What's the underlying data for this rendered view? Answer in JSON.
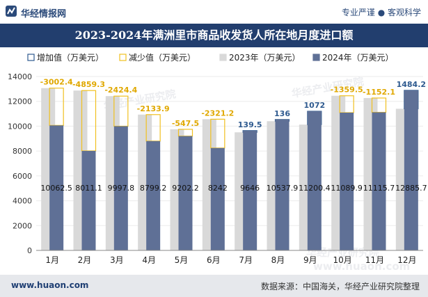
{
  "header": {
    "brand": "华经情报网",
    "tagline": "专业严谨 ● 客观科学",
    "title": "2023-2024年满洲里市商品收发货人所在地月度进口额"
  },
  "footer": {
    "website": "www.huaon.com",
    "source": "数据来源：中国海关，华经产业研究院整理"
  },
  "watermarks": [
    "华经产业研究院",
    "华经产业研究院",
    "华经产业研究院",
    "www.huaon.com"
  ],
  "colors": {
    "increase": "#2e5a8f",
    "decrease": "#f0c020",
    "y2023": "#d9d9d9",
    "y2024": "#5f7096",
    "increaseLabel": "#2e5a8f",
    "decreaseLabel": "#e0a800"
  },
  "chart_data": {
    "type": "bar",
    "categories": [
      "1月",
      "2月",
      "3月",
      "4月",
      "5月",
      "6月",
      "7月",
      "8月",
      "9月",
      "10月",
      "11月",
      "12月"
    ],
    "series": [
      {
        "name": "2023年（万美元）",
        "values": [
          13064.9,
          12870.4,
          12422.2,
          10933.1,
          9749.7,
          10563.2,
          9506.5,
          10401.9,
          10128.4,
          12449.4,
          12267.9,
          11401.5
        ]
      },
      {
        "name": "2024年（万美元）",
        "values": [
          10062.5,
          8011.1,
          9997.8,
          8799.2,
          9202.2,
          8242,
          9646,
          10537.9,
          11200.4,
          11089.9,
          11115.7,
          12885.7
        ]
      }
    ],
    "change_labels": [
      "-3002.4",
      "-4859.3",
      "-2424.4",
      "-2133.9",
      "-547.5",
      "-2321.2",
      "139.5",
      "136",
      "1072",
      "-1359.5",
      "-1152.1",
      "1484.2"
    ],
    "legend": [
      "增加值（万美元）",
      "减少值（万美元）",
      "2023年（万美元）",
      "2024年（万美元）"
    ],
    "y_ticks": [
      "0",
      "2000",
      "4000",
      "6000",
      "8000",
      "10000",
      "12000",
      "14000"
    ],
    "ylim": [
      0,
      14000
    ]
  }
}
